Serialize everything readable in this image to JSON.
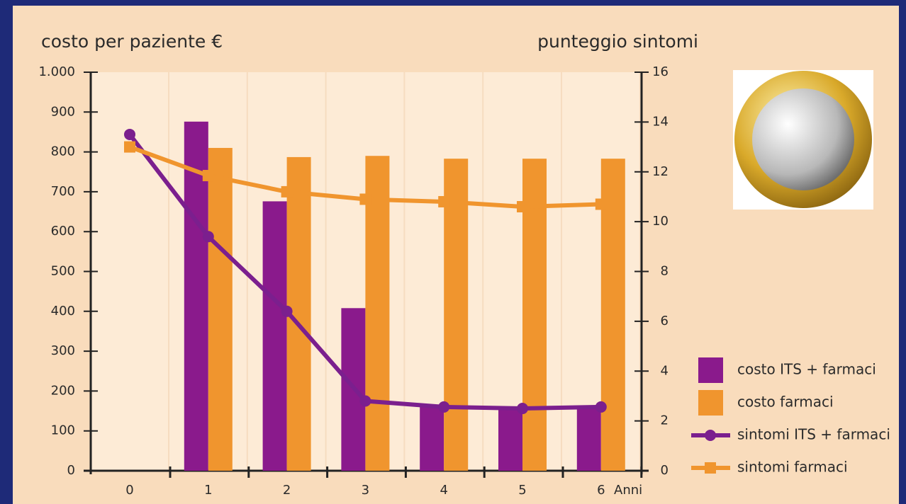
{
  "chart_data": {
    "type": "bar",
    "title_left": "costo per paziente €",
    "title_right": "punteggio sintomi",
    "x_label": "Anni",
    "categories": [
      "0",
      "1",
      "2",
      "3",
      "4",
      "5",
      "6"
    ],
    "series": [
      {
        "name": "costo ITS + farmaci",
        "type": "bar",
        "color": "#8a1a8c",
        "values": [
          null,
          876,
          676,
          408,
          160,
          160,
          160
        ]
      },
      {
        "name": "costo farmaci",
        "type": "bar",
        "color": "#f0952e",
        "values": [
          null,
          810,
          787,
          790,
          783,
          783,
          783
        ]
      },
      {
        "name": "sintomi ITS + farmaci",
        "type": "line",
        "marker": "circle",
        "axis": "y2",
        "color": "#7b1f8e",
        "values": [
          13.5,
          9.4,
          6.4,
          2.8,
          2.56,
          2.5,
          2.56
        ]
      },
      {
        "name": "sintomi farmaci",
        "type": "line",
        "marker": "square",
        "axis": "y2",
        "color": "#f0952e",
        "values": [
          13.0,
          11.85,
          11.2,
          10.9,
          10.8,
          10.6,
          10.7
        ]
      }
    ],
    "ylim": [
      0,
      1000
    ],
    "yticks": [
      0,
      100,
      200,
      300,
      400,
      500,
      600,
      700,
      800,
      900,
      {
        "value": 1000,
        "label": "1.000"
      }
    ],
    "y2lim": [
      0,
      16
    ],
    "y2ticks": [
      0,
      2,
      4,
      6,
      8,
      10,
      12,
      14,
      16
    ]
  }
}
